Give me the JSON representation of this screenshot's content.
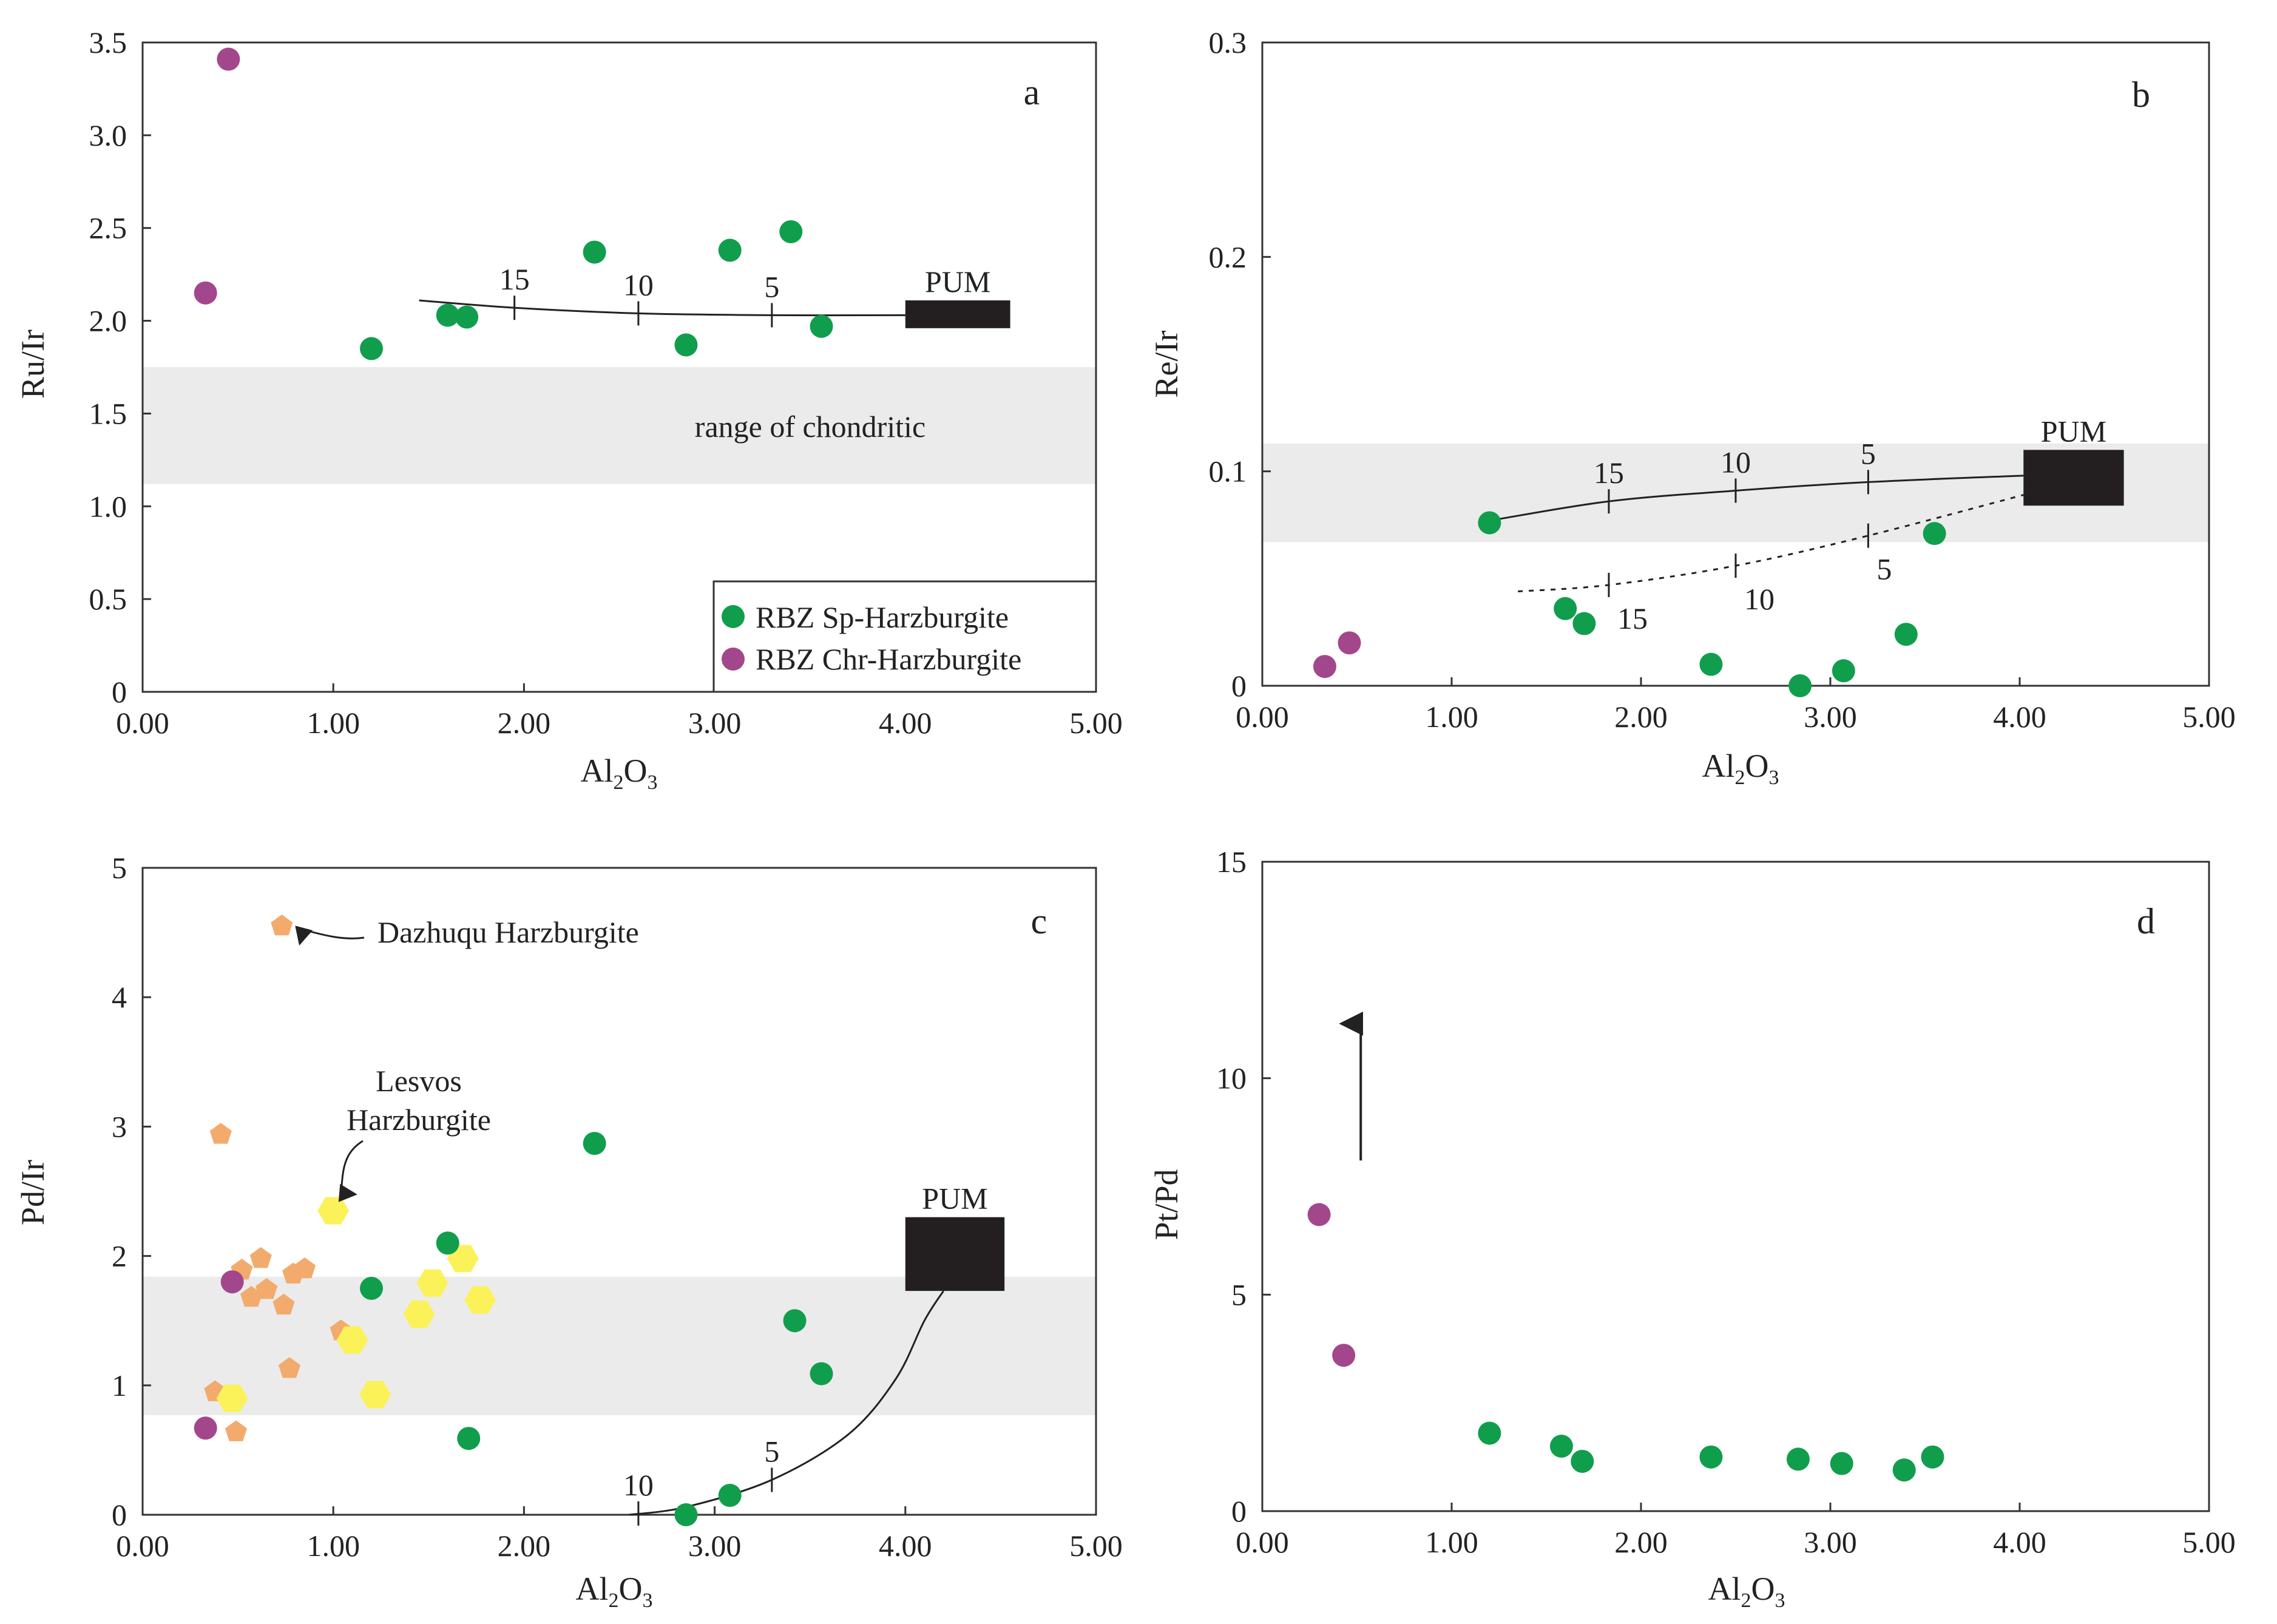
{
  "figure": {
    "colors": {
      "sp_harzburgite": "#109e4d",
      "chr_harzburgite": "#a3478c",
      "dazhuqu": "#f2ab6d",
      "lesvos": "#fbf25a",
      "pum_box": "#231f20",
      "chondritic_band": "#ebebeb",
      "axis": "#333333"
    },
    "legend": {
      "sp": "RBZ Sp-Harzburgite",
      "chr": "RBZ Chr-Harzburgite"
    }
  },
  "chart_data": [
    {
      "panel": "a",
      "type": "scatter",
      "xlabel": "Al2O3",
      "ylabel": "Ru/Ir",
      "xlim": [
        0,
        5
      ],
      "ylim": [
        0,
        3.5
      ],
      "xticks": [
        "0.00",
        "1.00",
        "2.00",
        "3.00",
        "4.00",
        "5.00"
      ],
      "yticks": [
        "0",
        "0.5",
        "1.0",
        "1.5",
        "2.0",
        "2.5",
        "3.0",
        "3.5"
      ],
      "band": {
        "y0": 1.12,
        "y1": 1.75,
        "label": "range of chondritic"
      },
      "pum": {
        "label": "PUM",
        "x0": 4.0,
        "x1": 4.55,
        "y0": 1.96,
        "y1": 2.11
      },
      "model_curves": [
        {
          "style": "solid",
          "points": [
            [
              1.45,
              2.11
            ],
            [
              1.95,
              2.07
            ],
            [
              2.6,
              2.04
            ],
            [
              3.3,
              2.03
            ],
            [
              4.0,
              2.03
            ]
          ],
          "ticks": [
            {
              "x": 1.95,
              "y": 2.07,
              "label": "15"
            },
            {
              "x": 2.6,
              "y": 2.04,
              "label": "10"
            },
            {
              "x": 3.3,
              "y": 2.03,
              "label": "5"
            }
          ]
        }
      ],
      "series": [
        {
          "name": "RBZ Sp-Harzburgite",
          "marker": "circle",
          "points": [
            [
              1.2,
              1.85
            ],
            [
              1.6,
              2.03
            ],
            [
              1.7,
              2.02
            ],
            [
              2.37,
              2.37
            ],
            [
              2.85,
              1.87
            ],
            [
              3.08,
              2.38
            ],
            [
              3.4,
              2.48
            ],
            [
              3.56,
              1.97
            ]
          ]
        },
        {
          "name": "RBZ Chr-Harzburgite",
          "marker": "circle",
          "points": [
            [
              0.33,
              2.15
            ],
            [
              0.45,
              3.41
            ]
          ]
        }
      ]
    },
    {
      "panel": "b",
      "type": "scatter",
      "xlabel": "Al2O3",
      "ylabel": "Re/Ir",
      "xlim": [
        0,
        5
      ],
      "ylim": [
        0,
        0.3
      ],
      "xticks": [
        "0.00",
        "1.00",
        "2.00",
        "3.00",
        "4.00",
        "5.00"
      ],
      "yticks": [
        "0",
        "0.1",
        "0.2",
        "0.3"
      ],
      "band": {
        "y0": 0.067,
        "y1": 0.113
      },
      "pum": {
        "label": "PUM",
        "x0": 4.02,
        "x1": 4.55,
        "y0": 0.084,
        "y1": 0.11
      },
      "model_curves": [
        {
          "style": "solid",
          "points": [
            [
              1.2,
              0.077
            ],
            [
              1.83,
              0.086
            ],
            [
              2.5,
              0.091
            ],
            [
              3.2,
              0.095
            ],
            [
              4.02,
              0.098
            ]
          ],
          "ticks": [
            {
              "x": 1.83,
              "y": 0.086,
              "label": "15"
            },
            {
              "x": 2.5,
              "y": 0.091,
              "label": "10"
            },
            {
              "x": 3.2,
              "y": 0.095,
              "label": "5"
            }
          ]
        },
        {
          "style": "dotted",
          "points": [
            [
              1.35,
              0.044
            ],
            [
              1.83,
              0.047
            ],
            [
              2.5,
              0.056
            ],
            [
              3.2,
              0.07
            ],
            [
              4.02,
              0.089
            ]
          ],
          "ticks": [
            {
              "x": 1.83,
              "y": 0.047,
              "label": "15"
            },
            {
              "x": 2.5,
              "y": 0.056,
              "label": "10"
            },
            {
              "x": 3.2,
              "y": 0.07,
              "label": "5"
            }
          ]
        }
      ],
      "series": [
        {
          "name": "RBZ Sp-Harzburgite",
          "marker": "circle",
          "points": [
            [
              1.2,
              0.076
            ],
            [
              1.6,
              0.036
            ],
            [
              1.7,
              0.029
            ],
            [
              2.37,
              0.01
            ],
            [
              2.84,
              0.0
            ],
            [
              3.07,
              0.007
            ],
            [
              3.4,
              0.024
            ],
            [
              3.55,
              0.071
            ]
          ]
        },
        {
          "name": "RBZ Chr-Harzburgite",
          "marker": "circle",
          "points": [
            [
              0.33,
              0.009
            ],
            [
              0.46,
              0.02
            ]
          ]
        }
      ]
    },
    {
      "panel": "c",
      "type": "scatter",
      "xlabel": "Al2O3",
      "ylabel": "Pd/Ir",
      "xlim": [
        0,
        5
      ],
      "ylim": [
        0,
        5
      ],
      "xticks": [
        "0.00",
        "1.00",
        "2.00",
        "3.00",
        "4.00",
        "5.00"
      ],
      "yticks": [
        "0",
        "1",
        "2",
        "3",
        "4",
        "5"
      ],
      "band": {
        "y0": 0.77,
        "y1": 1.84
      },
      "pum": {
        "label": "PUM",
        "x0": 4.0,
        "x1": 4.52,
        "y0": 1.73,
        "y1": 2.3
      },
      "model_curves": [
        {
          "style": "solid",
          "points": [
            [
              2.55,
              0.0
            ],
            [
              2.85,
              0.06
            ],
            [
              3.3,
              0.27
            ],
            [
              3.7,
              0.62
            ],
            [
              3.95,
              1.05
            ],
            [
              4.1,
              1.5
            ],
            [
              4.2,
              1.73
            ]
          ],
          "ticks": [
            {
              "x": 2.6,
              "y": 0.01,
              "label": "10"
            },
            {
              "x": 3.3,
              "y": 0.27,
              "label": "5"
            }
          ]
        }
      ],
      "annotations": [
        {
          "text": "Dazhuqu Harzburgite"
        },
        {
          "text_lines": [
            "Lesvos",
            "Harzburgite"
          ]
        }
      ],
      "series": [
        {
          "name": "Dazhuqu Harzburgite",
          "marker": "pentagon",
          "points": [
            [
              0.73,
              4.55
            ],
            [
              0.41,
              2.94
            ],
            [
              0.62,
              1.98
            ],
            [
              0.52,
              1.89
            ],
            [
              0.85,
              1.9
            ],
            [
              0.79,
              1.86
            ],
            [
              0.65,
              1.74
            ],
            [
              0.57,
              1.68
            ],
            [
              0.74,
              1.62
            ],
            [
              1.04,
              1.42
            ],
            [
              0.77,
              1.13
            ],
            [
              0.38,
              0.95
            ],
            [
              0.49,
              0.64
            ]
          ]
        },
        {
          "name": "Lesvos Harzburgite",
          "marker": "hexagon",
          "points": [
            [
              1.0,
              2.35
            ],
            [
              1.68,
              1.98
            ],
            [
              1.52,
              1.79
            ],
            [
              1.77,
              1.66
            ],
            [
              1.45,
              1.55
            ],
            [
              1.1,
              1.35
            ],
            [
              1.22,
              0.93
            ],
            [
              0.47,
              0.9
            ]
          ]
        },
        {
          "name": "RBZ Sp-Harzburgite",
          "marker": "circle",
          "points": [
            [
              2.37,
              2.87
            ],
            [
              1.6,
              2.1
            ],
            [
              1.2,
              1.75
            ],
            [
              3.42,
              1.5
            ],
            [
              3.56,
              1.09
            ],
            [
              1.71,
              0.59
            ],
            [
              3.08,
              0.15
            ],
            [
              2.85,
              0.0
            ]
          ]
        },
        {
          "name": "RBZ Chr-Harzburgite",
          "marker": "circle",
          "points": [
            [
              0.47,
              1.8
            ],
            [
              0.33,
              0.67
            ]
          ]
        }
      ]
    },
    {
      "panel": "d",
      "type": "scatter",
      "xlabel": "Al2O3",
      "ylabel": "Pt/Pd",
      "xlim": [
        0,
        5
      ],
      "ylim": [
        0,
        15
      ],
      "xticks": [
        "0.00",
        "1.00",
        "2.00",
        "3.00",
        "4.00",
        "5.00"
      ],
      "yticks": [
        "0",
        "5",
        "10",
        "15"
      ],
      "arrow": {
        "x": 0.52,
        "y0": 8.1,
        "y1": 11.4
      },
      "series": [
        {
          "name": "RBZ Sp-Harzburgite",
          "marker": "circle",
          "points": [
            [
              1.2,
              1.8
            ],
            [
              1.58,
              1.5
            ],
            [
              1.69,
              1.15
            ],
            [
              2.37,
              1.25
            ],
            [
              2.83,
              1.2
            ],
            [
              3.06,
              1.1
            ],
            [
              3.39,
              0.95
            ],
            [
              3.54,
              1.25
            ]
          ]
        },
        {
          "name": "RBZ Chr-Harzburgite",
          "marker": "circle",
          "points": [
            [
              0.3,
              6.85
            ],
            [
              0.43,
              3.6
            ]
          ]
        }
      ]
    }
  ]
}
